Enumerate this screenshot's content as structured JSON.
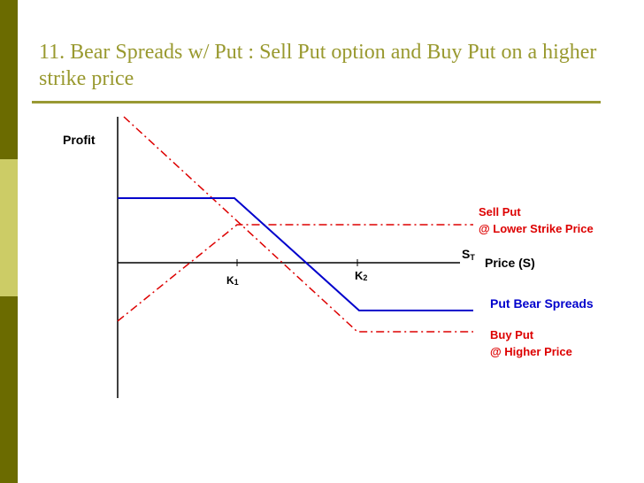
{
  "title": "11. Bear Spreads w/ Put : Sell Put option and Buy Put on a higher strike price",
  "axis": {
    "y_label": "Profit",
    "x_label": "Price (S)",
    "st_main": "S",
    "st_sub": "T",
    "k1_main": "K",
    "k1_sub": "1",
    "k2_main": "K",
    "k2_sub": "2"
  },
  "legend": {
    "sell_put_line1": "Sell Put",
    "sell_put_line2": "@ Lower Strike Price",
    "bear_spread": "Put Bear Spreads",
    "buy_put_line1": "Buy Put",
    "buy_put_line2": "@ Higher Price"
  },
  "colors": {
    "sidebar_dark": "#6b6b00",
    "sidebar_light": "#cccc66",
    "title": "#99992f",
    "rule": "#999933",
    "spread_line": "#0000cc",
    "option_line": "#dd0000",
    "label_red": "#dd0000",
    "label_blue": "#0000cc"
  }
}
